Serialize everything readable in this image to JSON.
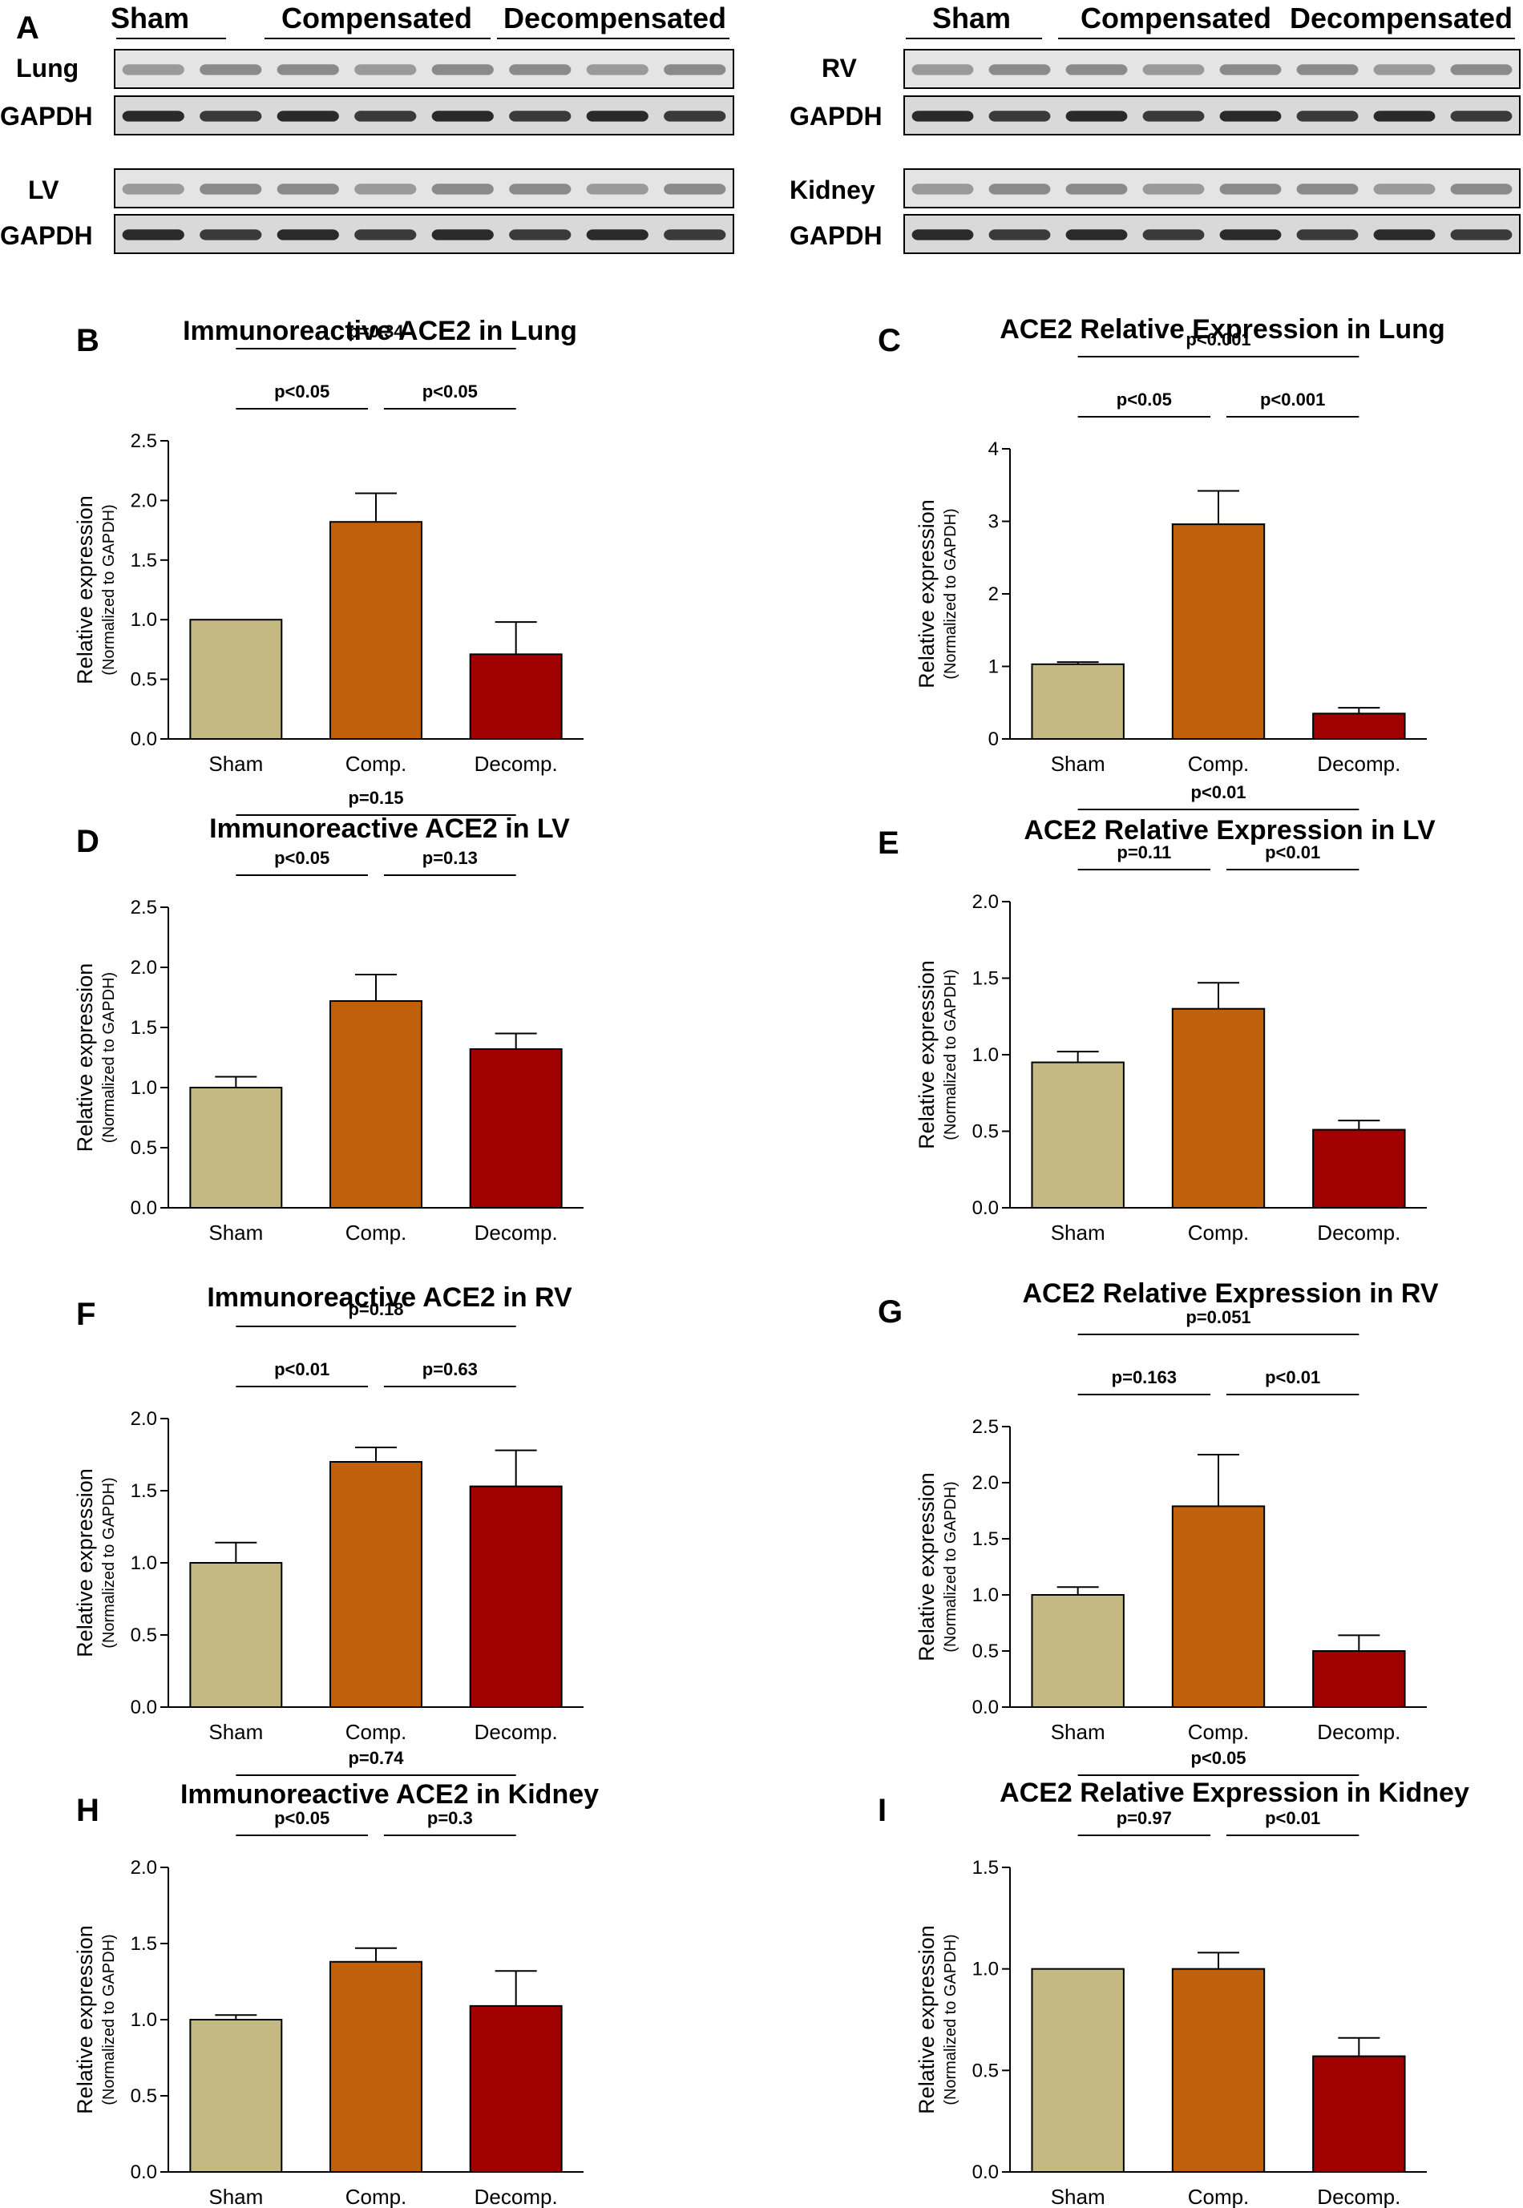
{
  "panel_a": {
    "letter": "A",
    "groups": [
      "Sham",
      "Compensated",
      "Decompensated"
    ],
    "left_blots": [
      {
        "rows": [
          "Lung",
          "GAPDH"
        ]
      },
      {
        "rows": [
          "LV",
          "GAPDH"
        ]
      }
    ],
    "right_blots": [
      {
        "rows": [
          "RV",
          "GAPDH"
        ]
      },
      {
        "rows": [
          "Kidney",
          "GAPDH"
        ]
      }
    ]
  },
  "colors": {
    "Sham": "#c4b883",
    "Comp.": "#c0600a",
    "Decomp.": "#a00000"
  },
  "chart_data": [
    {
      "id": "B",
      "type": "bar",
      "title": "Immunoreactive ACE2 in Lung",
      "categories": [
        "Sham",
        "Comp.",
        "Decomp."
      ],
      "values": [
        1.0,
        1.82,
        0.71
      ],
      "errors": [
        0.0,
        0.24,
        0.27
      ],
      "ylabel": "Relative expression",
      "ylabel_sub": "(Normalized to GAPDH)",
      "ylim": [
        0,
        2.5
      ],
      "yticks": [
        "0.0",
        "0.5",
        "1.0",
        "1.5",
        "2.0",
        "2.5"
      ],
      "comparisons": [
        {
          "from": 0,
          "to": 2,
          "label": "p=0.34",
          "tier": 2
        },
        {
          "from": 0,
          "to": 1,
          "label": "p<0.05",
          "tier": 1
        },
        {
          "from": 1,
          "to": 2,
          "label": "p<0.05",
          "tier": 1
        }
      ]
    },
    {
      "id": "C",
      "type": "bar",
      "title": "ACE2 Relative Expression in Lung",
      "categories": [
        "Sham",
        "Comp.",
        "Decomp."
      ],
      "values": [
        1.03,
        2.96,
        0.35
      ],
      "errors": [
        0.03,
        0.46,
        0.08
      ],
      "ylabel": "Relative expression",
      "ylabel_sub": "(Normalized to GAPDH)",
      "ylim": [
        0,
        4
      ],
      "yticks": [
        "0",
        "1",
        "2",
        "3",
        "4"
      ],
      "comparisons": [
        {
          "from": 0,
          "to": 2,
          "label": "p<0.001",
          "tier": 2
        },
        {
          "from": 0,
          "to": 1,
          "label": "p<0.05",
          "tier": 1
        },
        {
          "from": 1,
          "to": 2,
          "label": "p<0.001",
          "tier": 1
        }
      ]
    },
    {
      "id": "D",
      "type": "bar",
      "title": "Immunoreactive ACE2 in LV",
      "categories": [
        "Sham",
        "Comp.",
        "Decomp."
      ],
      "values": [
        1.0,
        1.72,
        1.32
      ],
      "errors": [
        0.09,
        0.22,
        0.13
      ],
      "ylabel": "Relative expression",
      "ylabel_sub": "(Normalized to GAPDH)",
      "ylim": [
        0,
        2.5
      ],
      "yticks": [
        "0.0",
        "0.5",
        "1.0",
        "1.5",
        "2.0",
        "2.5"
      ],
      "comparisons": [
        {
          "from": 0,
          "to": 2,
          "label": "p=0.15",
          "tier": 2
        },
        {
          "from": 0,
          "to": 1,
          "label": "p<0.05",
          "tier": 1
        },
        {
          "from": 1,
          "to": 2,
          "label": "p=0.13",
          "tier": 1
        }
      ]
    },
    {
      "id": "E",
      "type": "bar",
      "title": "ACE2 Relative Expression in LV",
      "categories": [
        "Sham",
        "Comp.",
        "Decomp."
      ],
      "values": [
        0.95,
        1.3,
        0.51
      ],
      "errors": [
        0.07,
        0.17,
        0.06
      ],
      "ylabel": "Relative expression",
      "ylabel_sub": "(Normalized to GAPDH)",
      "ylim": [
        0,
        2.0
      ],
      "yticks": [
        "0.0",
        "0.5",
        "1.0",
        "1.5",
        "2.0"
      ],
      "comparisons": [
        {
          "from": 0,
          "to": 2,
          "label": "p<0.01",
          "tier": 2
        },
        {
          "from": 0,
          "to": 1,
          "label": "p=0.11",
          "tier": 1
        },
        {
          "from": 1,
          "to": 2,
          "label": "p<0.01",
          "tier": 1
        }
      ]
    },
    {
      "id": "F",
      "type": "bar",
      "title": "Immunoreactive ACE2 in RV",
      "categories": [
        "Sham",
        "Comp.",
        "Decomp."
      ],
      "values": [
        1.0,
        1.7,
        1.53
      ],
      "errors": [
        0.14,
        0.1,
        0.25
      ],
      "ylabel": "Relative expression",
      "ylabel_sub": "(Normalized to GAPDH)",
      "ylim": [
        0,
        2.0
      ],
      "yticks": [
        "0.0",
        "0.5",
        "1.0",
        "1.5",
        "2.0"
      ],
      "comparisons": [
        {
          "from": 0,
          "to": 2,
          "label": "p=0.18",
          "tier": 2
        },
        {
          "from": 0,
          "to": 1,
          "label": "p<0.01",
          "tier": 1
        },
        {
          "from": 1,
          "to": 2,
          "label": "p=0.63",
          "tier": 1
        }
      ]
    },
    {
      "id": "G",
      "type": "bar",
      "title": "ACE2 Relative Expression in RV",
      "categories": [
        "Sham",
        "Comp.",
        "Decomp."
      ],
      "values": [
        1.0,
        1.79,
        0.5
      ],
      "errors": [
        0.07,
        0.46,
        0.14
      ],
      "ylabel": "Relative expression",
      "ylabel_sub": "(Normalized to GAPDH)",
      "ylim": [
        0,
        2.5
      ],
      "yticks": [
        "0.0",
        "0.5",
        "1.0",
        "1.5",
        "2.0",
        "2.5"
      ],
      "comparisons": [
        {
          "from": 0,
          "to": 2,
          "label": "p=0.051",
          "tier": 2
        },
        {
          "from": 0,
          "to": 1,
          "label": "p=0.163",
          "tier": 1
        },
        {
          "from": 1,
          "to": 2,
          "label": "p<0.01",
          "tier": 1
        }
      ]
    },
    {
      "id": "H",
      "type": "bar",
      "title": "Immunoreactive ACE2 in Kidney",
      "categories": [
        "Sham",
        "Comp.",
        "Decomp."
      ],
      "values": [
        1.0,
        1.38,
        1.09
      ],
      "errors": [
        0.03,
        0.09,
        0.23
      ],
      "ylabel": "Relative expression",
      "ylabel_sub": "(Normalized to GAPDH)",
      "ylim": [
        0,
        2.0
      ],
      "yticks": [
        "0.0",
        "0.5",
        "1.0",
        "1.5",
        "2.0"
      ],
      "comparisons": [
        {
          "from": 0,
          "to": 2,
          "label": "p=0.74",
          "tier": 2
        },
        {
          "from": 0,
          "to": 1,
          "label": "p<0.05",
          "tier": 1
        },
        {
          "from": 1,
          "to": 2,
          "label": "p=0.3",
          "tier": 1
        }
      ]
    },
    {
      "id": "I",
      "type": "bar",
      "title": "ACE2 Relative Expression in Kidney",
      "categories": [
        "Sham",
        "Comp.",
        "Decomp."
      ],
      "values": [
        1.0,
        1.0,
        0.57
      ],
      "errors": [
        0.0,
        0.08,
        0.09
      ],
      "ylabel": "Relative expression",
      "ylabel_sub": "(Normalized to GAPDH)",
      "ylim": [
        0,
        1.5
      ],
      "yticks": [
        "0.0",
        "0.5",
        "1.0",
        "1.5"
      ],
      "comparisons": [
        {
          "from": 0,
          "to": 2,
          "label": "p<0.05",
          "tier": 2
        },
        {
          "from": 0,
          "to": 1,
          "label": "p=0.97",
          "tier": 1
        },
        {
          "from": 1,
          "to": 2,
          "label": "p<0.01",
          "tier": 1
        }
      ]
    }
  ]
}
